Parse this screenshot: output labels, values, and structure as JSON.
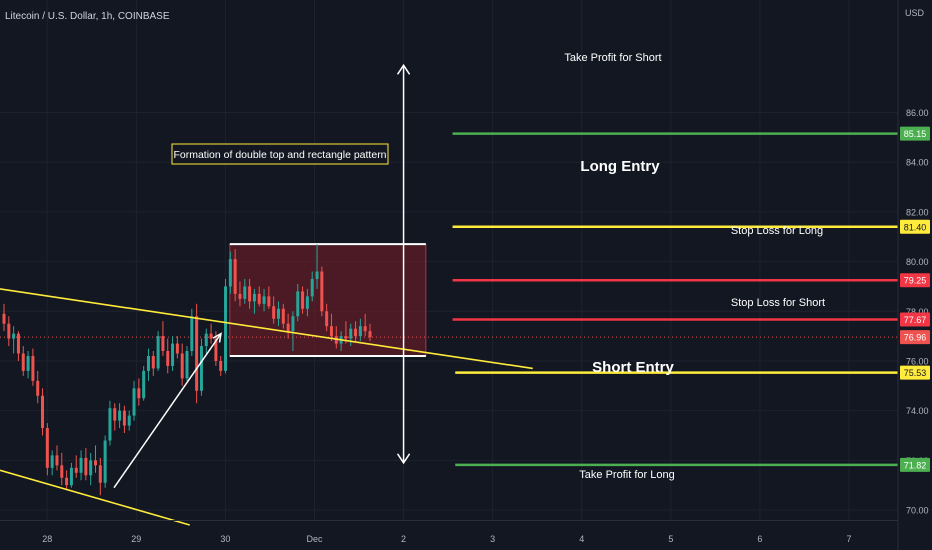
{
  "header": {
    "symbol_title": "Litecoin / U.S. Dollar, 1h, COINBASE",
    "currency": "USD"
  },
  "colors": {
    "background": "#131722",
    "grid": "#1e222d",
    "up": "#26a69a",
    "down": "#ef5350",
    "yellow": "#ffeb3b",
    "red_line": "#f23645",
    "green_line": "#4caf50",
    "white": "#ffffff",
    "rect_fill": "#7a1e27"
  },
  "annotations": {
    "pattern_note": "Formation of double top and rectangle pattern",
    "take_profit_short": "Take Profit for Short",
    "long_entry": "Long Entry",
    "stop_loss_long": "Stop Loss for Long",
    "stop_loss_short": "Stop Loss for Short",
    "short_entry": "Short Entry",
    "take_profit_long": "Take Profit for Long"
  },
  "chart_data": {
    "type": "candlestick",
    "title": "Litecoin / U.S. Dollar, 1h, COINBASE",
    "ylabel": "USD",
    "ylim": [
      69.6,
      89.4
    ],
    "y_ticks": [
      70,
      72,
      74,
      76,
      78,
      80,
      82,
      84,
      86
    ],
    "y_tick_labels": [
      "70.00",
      "72.00",
      "74.00",
      "76.00",
      "78.00",
      "80.00",
      "82.00",
      "84.00",
      "86.00"
    ],
    "x_tick_labels": [
      "28",
      "29",
      "30",
      "Dec",
      "2",
      "3",
      "4",
      "5",
      "6",
      "7"
    ],
    "x_tick_days": [
      0,
      1,
      2,
      3,
      4,
      5,
      6,
      7,
      8,
      9
    ],
    "x_day_range": [
      -0.53,
      9.55
    ],
    "current_price": 76.96,
    "price_levels": [
      {
        "label": "Take Profit for Short",
        "value": 85.15,
        "color": "green",
        "day_start": 4.55
      },
      {
        "label": "Long Entry",
        "value": 81.4,
        "color": "yellow",
        "day_start": 4.55
      },
      {
        "label": "Stop Loss for Long",
        "value": 79.25,
        "color": "red",
        "day_start": 4.55
      },
      {
        "label": "Stop Loss for Short",
        "value": 77.67,
        "color": "red",
        "day_start": 4.55
      },
      {
        "label": "Short Entry",
        "value": 75.53,
        "color": "yellow",
        "day_start": 4.58
      },
      {
        "label": "Take Profit for Long",
        "value": 71.82,
        "color": "green",
        "day_start": 4.58
      }
    ],
    "rectangle": {
      "day_start": 2.05,
      "day_end": 4.25,
      "top": 80.7,
      "bottom": 76.2
    },
    "trendlines": [
      {
        "from": [
          -0.53,
          78.9
        ],
        "to": [
          5.45,
          75.7
        ],
        "color": "yellow"
      },
      {
        "from": [
          -0.53,
          71.6
        ],
        "to": [
          1.6,
          69.4
        ],
        "color": "yellow"
      }
    ],
    "arrow_up": {
      "from": [
        0.75,
        70.9
      ],
      "to": [
        1.95,
        77.1
      ]
    },
    "projection": {
      "day": 4.0,
      "top": 87.9,
      "bottom": 71.9
    },
    "candles": [
      {
        "o": 77.9,
        "h": 78.3,
        "l": 77.2,
        "c": 77.5
      },
      {
        "o": 77.5,
        "h": 77.8,
        "l": 76.6,
        "c": 76.9
      },
      {
        "o": 76.9,
        "h": 77.4,
        "l": 76.3,
        "c": 77.1
      },
      {
        "o": 77.1,
        "h": 77.2,
        "l": 76.0,
        "c": 76.3
      },
      {
        "o": 76.3,
        "h": 76.6,
        "l": 75.4,
        "c": 75.6
      },
      {
        "o": 75.6,
        "h": 76.4,
        "l": 75.3,
        "c": 76.2
      },
      {
        "o": 76.2,
        "h": 76.5,
        "l": 75.0,
        "c": 75.2
      },
      {
        "o": 75.2,
        "h": 75.6,
        "l": 74.3,
        "c": 74.6
      },
      {
        "o": 74.6,
        "h": 74.9,
        "l": 73.0,
        "c": 73.3
      },
      {
        "o": 73.3,
        "h": 73.5,
        "l": 71.4,
        "c": 71.7
      },
      {
        "o": 71.7,
        "h": 72.4,
        "l": 71.4,
        "c": 72.2
      },
      {
        "o": 72.2,
        "h": 72.6,
        "l": 71.6,
        "c": 71.8
      },
      {
        "o": 71.8,
        "h": 72.3,
        "l": 71.0,
        "c": 71.3
      },
      {
        "o": 71.3,
        "h": 71.6,
        "l": 70.8,
        "c": 71.0
      },
      {
        "o": 71.0,
        "h": 71.9,
        "l": 70.9,
        "c": 71.7
      },
      {
        "o": 71.7,
        "h": 72.2,
        "l": 71.3,
        "c": 71.5
      },
      {
        "o": 71.5,
        "h": 72.4,
        "l": 71.2,
        "c": 72.1
      },
      {
        "o": 72.1,
        "h": 72.5,
        "l": 71.2,
        "c": 71.4
      },
      {
        "o": 71.4,
        "h": 72.3,
        "l": 71.0,
        "c": 72.0
      },
      {
        "o": 72.0,
        "h": 72.6,
        "l": 71.5,
        "c": 71.8
      },
      {
        "o": 71.8,
        "h": 72.1,
        "l": 70.6,
        "c": 71.1
      },
      {
        "o": 71.1,
        "h": 73.0,
        "l": 70.9,
        "c": 72.8
      },
      {
        "o": 72.8,
        "h": 74.4,
        "l": 72.6,
        "c": 74.1
      },
      {
        "o": 74.1,
        "h": 74.3,
        "l": 73.2,
        "c": 73.6
      },
      {
        "o": 73.6,
        "h": 74.3,
        "l": 73.3,
        "c": 74.0
      },
      {
        "o": 74.0,
        "h": 74.2,
        "l": 73.1,
        "c": 73.4
      },
      {
        "o": 73.4,
        "h": 74.0,
        "l": 73.2,
        "c": 73.8
      },
      {
        "o": 73.8,
        "h": 75.2,
        "l": 73.6,
        "c": 74.9
      },
      {
        "o": 74.9,
        "h": 75.3,
        "l": 74.2,
        "c": 74.5
      },
      {
        "o": 74.5,
        "h": 75.8,
        "l": 74.4,
        "c": 75.6
      },
      {
        "o": 75.6,
        "h": 76.5,
        "l": 75.2,
        "c": 76.2
      },
      {
        "o": 76.2,
        "h": 76.4,
        "l": 75.4,
        "c": 75.7
      },
      {
        "o": 75.7,
        "h": 77.2,
        "l": 75.6,
        "c": 77.0
      },
      {
        "o": 77.0,
        "h": 77.6,
        "l": 76.2,
        "c": 76.4
      },
      {
        "o": 76.4,
        "h": 76.9,
        "l": 75.5,
        "c": 75.8
      },
      {
        "o": 75.8,
        "h": 77.0,
        "l": 75.6,
        "c": 76.7
      },
      {
        "o": 76.7,
        "h": 77.0,
        "l": 76.1,
        "c": 76.3
      },
      {
        "o": 76.3,
        "h": 76.7,
        "l": 75.0,
        "c": 75.3
      },
      {
        "o": 75.3,
        "h": 76.6,
        "l": 75.2,
        "c": 76.4
      },
      {
        "o": 76.4,
        "h": 78.1,
        "l": 76.2,
        "c": 77.8
      },
      {
        "o": 77.8,
        "h": 78.3,
        "l": 74.3,
        "c": 74.8
      },
      {
        "o": 74.8,
        "h": 76.9,
        "l": 74.6,
        "c": 76.6
      },
      {
        "o": 76.6,
        "h": 77.3,
        "l": 76.3,
        "c": 77.1
      },
      {
        "o": 77.1,
        "h": 77.5,
        "l": 76.7,
        "c": 76.9
      },
      {
        "o": 76.9,
        "h": 77.2,
        "l": 75.8,
        "c": 76.0
      },
      {
        "o": 76.0,
        "h": 76.2,
        "l": 75.4,
        "c": 75.6
      },
      {
        "o": 75.6,
        "h": 79.3,
        "l": 75.5,
        "c": 79.0
      },
      {
        "o": 79.0,
        "h": 80.4,
        "l": 78.7,
        "c": 80.1
      },
      {
        "o": 80.1,
        "h": 80.5,
        "l": 78.4,
        "c": 78.7
      },
      {
        "o": 78.7,
        "h": 79.2,
        "l": 78.2,
        "c": 78.5
      },
      {
        "o": 78.5,
        "h": 79.3,
        "l": 78.3,
        "c": 79.0
      },
      {
        "o": 79.0,
        "h": 79.3,
        "l": 78.1,
        "c": 78.4
      },
      {
        "o": 78.4,
        "h": 78.9,
        "l": 77.9,
        "c": 78.7
      },
      {
        "o": 78.7,
        "h": 79.0,
        "l": 78.2,
        "c": 78.3
      },
      {
        "o": 78.3,
        "h": 78.9,
        "l": 78.0,
        "c": 78.6
      },
      {
        "o": 78.6,
        "h": 79.0,
        "l": 78.1,
        "c": 78.2
      },
      {
        "o": 78.2,
        "h": 78.6,
        "l": 77.5,
        "c": 77.7
      },
      {
        "o": 77.7,
        "h": 78.4,
        "l": 77.4,
        "c": 78.1
      },
      {
        "o": 78.1,
        "h": 78.3,
        "l": 77.3,
        "c": 77.5
      },
      {
        "o": 77.5,
        "h": 77.9,
        "l": 76.9,
        "c": 77.2
      },
      {
        "o": 77.2,
        "h": 78.0,
        "l": 76.4,
        "c": 77.8
      },
      {
        "o": 77.8,
        "h": 79.1,
        "l": 77.6,
        "c": 78.8
      },
      {
        "o": 78.8,
        "h": 79.0,
        "l": 77.9,
        "c": 78.1
      },
      {
        "o": 78.1,
        "h": 78.9,
        "l": 77.8,
        "c": 78.6
      },
      {
        "o": 78.6,
        "h": 79.6,
        "l": 78.4,
        "c": 79.3
      },
      {
        "o": 79.3,
        "h": 80.7,
        "l": 78.9,
        "c": 79.6
      },
      {
        "o": 79.6,
        "h": 79.8,
        "l": 77.8,
        "c": 78.0
      },
      {
        "o": 78.0,
        "h": 78.3,
        "l": 77.2,
        "c": 77.4
      },
      {
        "o": 77.4,
        "h": 77.9,
        "l": 76.8,
        "c": 77.0
      },
      {
        "o": 77.0,
        "h": 77.4,
        "l": 76.5,
        "c": 76.7
      },
      {
        "o": 76.7,
        "h": 77.2,
        "l": 76.4,
        "c": 77.0
      },
      {
        "o": 77.0,
        "h": 77.6,
        "l": 76.7,
        "c": 76.9
      },
      {
        "o": 76.9,
        "h": 77.5,
        "l": 76.6,
        "c": 77.3
      },
      {
        "o": 77.3,
        "h": 77.6,
        "l": 76.8,
        "c": 77.0
      },
      {
        "o": 77.0,
        "h": 77.7,
        "l": 76.8,
        "c": 77.4
      },
      {
        "o": 77.4,
        "h": 77.9,
        "l": 77.0,
        "c": 77.2
      },
      {
        "o": 77.2,
        "h": 77.5,
        "l": 76.8,
        "c": 76.96
      }
    ]
  }
}
